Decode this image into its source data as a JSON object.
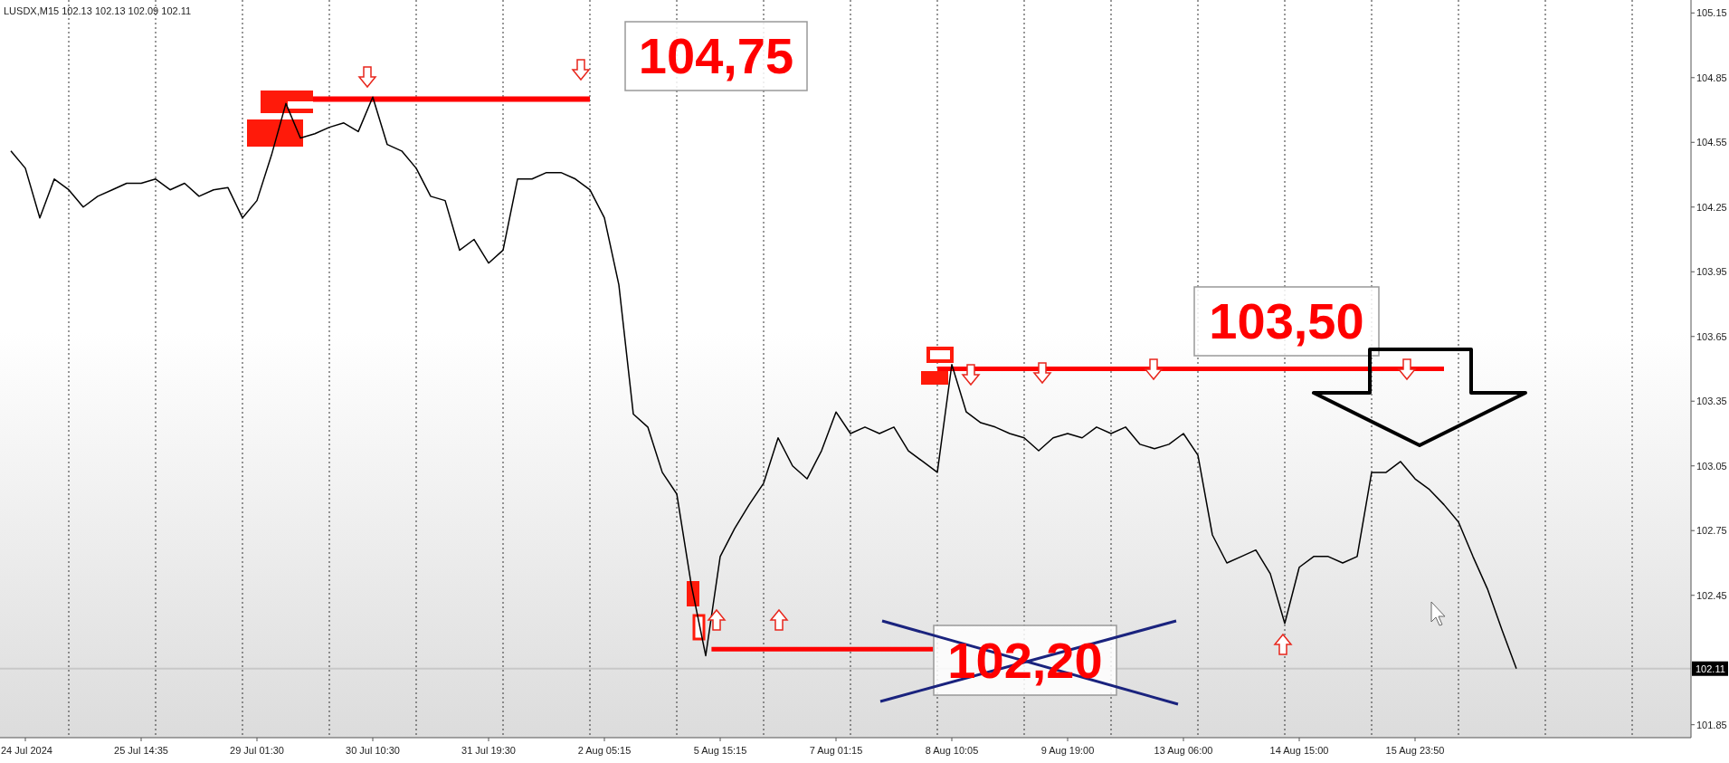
{
  "chart_data": {
    "type": "line",
    "title": "LUSDX,M15  102.13 102.13 102.09 102.11",
    "categories": [
      null,
      "24 Jul 2024",
      null,
      null,
      null,
      null,
      null,
      null,
      null,
      "25 Jul 14:35",
      null,
      null,
      null,
      null,
      null,
      null,
      null,
      "29 Jul 01:30",
      null,
      null,
      null,
      null,
      null,
      null,
      null,
      "30 Jul 10:30",
      null,
      null,
      null,
      null,
      null,
      null,
      null,
      "31 Jul 19:30",
      null,
      null,
      null,
      null,
      null,
      null,
      null,
      "2 Aug 05:15",
      null,
      null,
      null,
      null,
      null,
      null,
      null,
      "5 Aug 15:15",
      null,
      null,
      null,
      null,
      null,
      null,
      null,
      "7 Aug 01:15",
      null,
      null,
      null,
      null,
      null,
      null,
      null,
      "8 Aug 10:05",
      null,
      null,
      null,
      null,
      null,
      null,
      null,
      "9 Aug 19:00",
      null,
      null,
      null,
      null,
      null,
      null,
      null,
      "13 Aug 06:00",
      null,
      null,
      null,
      null,
      null,
      null,
      null,
      "14 Aug 15:00",
      null,
      null,
      null,
      null,
      null,
      null,
      null,
      "15 Aug 23:50",
      null,
      null,
      null,
      null,
      null,
      null,
      null,
      null,
      null,
      null,
      null,
      null,
      null,
      null,
      null,
      null,
      null,
      null,
      null
    ],
    "series": [
      {
        "color": "#000000",
        "values": [
          104.51,
          104.43,
          104.2,
          104.38,
          104.33,
          104.25,
          104.3,
          104.33,
          104.36,
          104.36,
          104.38,
          104.33,
          104.36,
          104.3,
          104.33,
          104.34,
          104.2,
          104.28,
          104.49,
          104.73,
          104.57,
          104.59,
          104.62,
          104.64,
          104.6,
          104.76,
          104.54,
          104.51,
          104.43,
          104.3,
          104.28,
          104.05,
          104.1,
          103.99,
          104.05,
          104.38,
          104.38,
          104.41,
          104.41,
          104.38,
          104.33,
          104.2,
          103.89,
          103.29,
          103.23,
          103.02,
          102.92,
          102.5,
          102.17,
          102.63,
          102.76,
          102.87,
          102.97,
          103.18,
          103.05,
          102.99,
          103.12,
          103.3,
          103.2,
          103.23,
          103.2,
          103.23,
          103.12,
          103.07,
          103.02,
          103.52,
          103.3,
          103.25,
          103.23,
          103.2,
          103.18,
          103.12,
          103.18,
          103.2,
          103.18,
          103.23,
          103.2,
          103.23,
          103.15,
          103.13,
          103.15,
          103.2,
          103.1,
          102.73,
          102.6,
          102.63,
          102.66,
          102.55,
          102.32,
          102.58,
          102.63,
          102.63,
          102.6,
          102.63,
          103.02,
          103.02,
          103.07,
          102.99,
          102.94,
          102.87,
          102.79,
          102.63,
          102.48,
          102.29,
          102.11,
          null,
          null,
          null,
          null,
          null,
          null,
          null,
          null,
          null,
          null,
          null,
          null
        ]
      }
    ],
    "ylim": [
      101.79,
      105.21
    ],
    "yticks": [
      105.15,
      104.85,
      104.55,
      104.25,
      103.95,
      103.65,
      103.35,
      103.05,
      102.75,
      102.45,
      101.85
    ],
    "grid": "x",
    "ref_lines": [
      {
        "axis": "y",
        "value": 104.75,
        "label": "104,75",
        "color": "#ff0000"
      },
      {
        "axis": "y",
        "value": 103.5,
        "label": "103,50",
        "color": "#ff0000"
      },
      {
        "axis": "y",
        "value": 102.11,
        "label": "102.11",
        "color": "#c8c8c8"
      },
      {
        "axis": "y",
        "value": 102.2,
        "label": "102,20",
        "color": "#ff0000"
      }
    ]
  }
}
